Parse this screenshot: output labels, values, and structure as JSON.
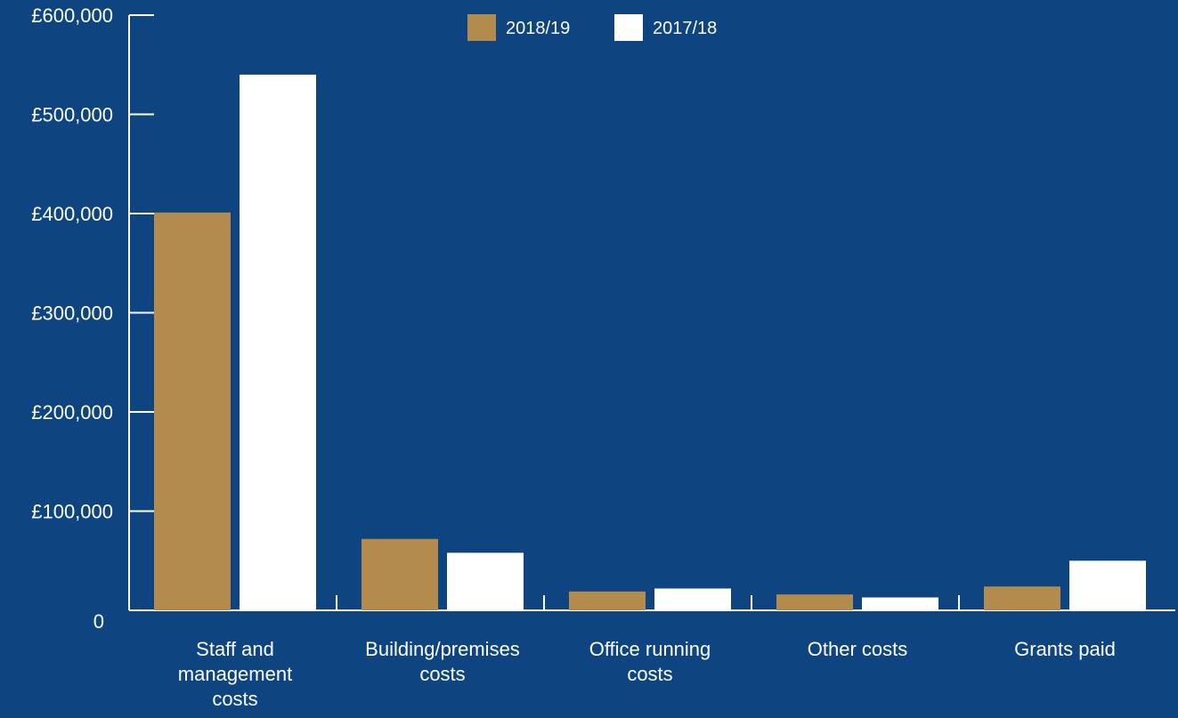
{
  "chart_data": {
    "type": "bar",
    "categories": [
      [
        "Staff and",
        "management",
        "costs"
      ],
      [
        "Building/premises",
        "costs"
      ],
      [
        "Office running",
        "costs"
      ],
      [
        "Other costs"
      ],
      [
        "Grants paid"
      ]
    ],
    "series": [
      {
        "name": "2018/19",
        "color": "#b38c4d",
        "values": [
          401000,
          72000,
          19000,
          16000,
          24000
        ]
      },
      {
        "name": "2017/18",
        "color": "#ffffff",
        "values": [
          540000,
          58000,
          22000,
          13000,
          50000
        ]
      }
    ],
    "y_ticks": [
      {
        "value": 0,
        "label": "0"
      },
      {
        "value": 100000,
        "label": "£100,000"
      },
      {
        "value": 200000,
        "label": "£200,000"
      },
      {
        "value": 300000,
        "label": "£300,000"
      },
      {
        "value": 400000,
        "label": "£400,000"
      },
      {
        "value": 500000,
        "label": "£500,000"
      },
      {
        "value": 600000,
        "label": "£600,000"
      }
    ],
    "ylim": [
      0,
      600000
    ],
    "legend_position": "top-center",
    "grid": false,
    "axis_color": "#ffffff",
    "background": "#0e4580"
  }
}
